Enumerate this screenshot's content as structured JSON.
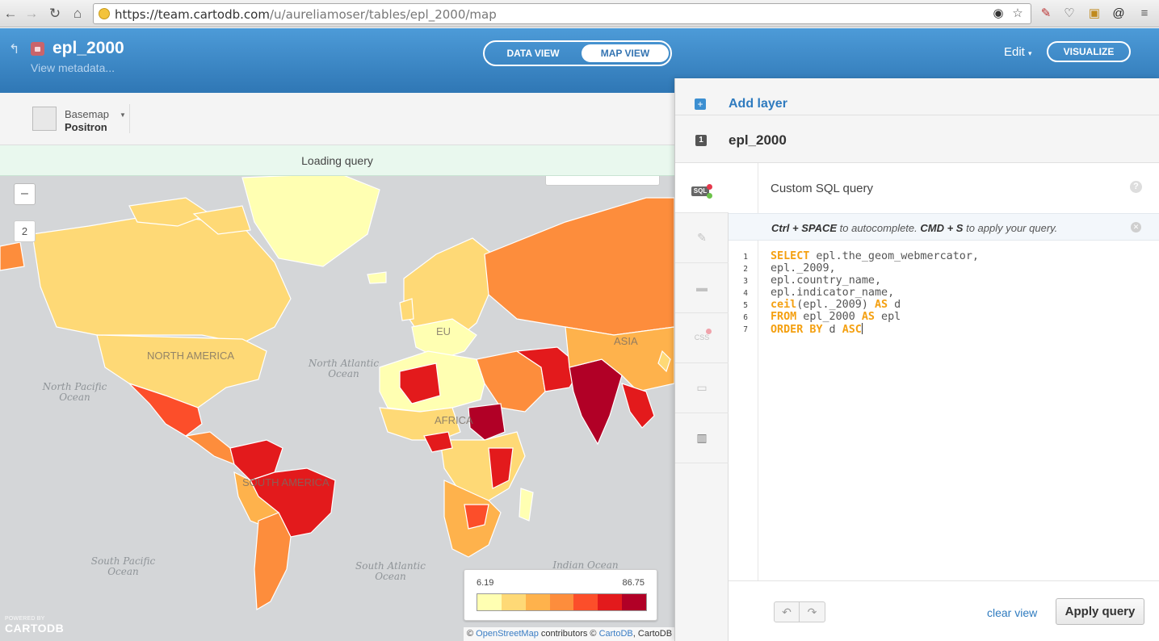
{
  "browser": {
    "url_host": "https://team.cartodb.com",
    "url_path": "/u/aureliamoser/tables/epl_2000/map"
  },
  "header": {
    "table_name": "epl_2000",
    "view_metadata": "View metadata...",
    "data_view": "DATA VIEW",
    "map_view": "MAP VIEW",
    "edit": "Edit",
    "visualize": "VISUALIZE"
  },
  "map": {
    "basemap_label": "Basemap",
    "basemap_value": "Positron",
    "loading": "Loading query",
    "zoom_out": "–",
    "zoom_level": "2",
    "ocean_labels": [
      "North Atlantic Ocean",
      "North Pacific Ocean",
      "South Pacific Ocean",
      "South Atlantic Ocean",
      "Indian Ocean"
    ],
    "continent_labels": [
      "NORTH AMERICA",
      "SOUTH AMERICA",
      "AFRICA",
      "EU",
      "ASIA"
    ],
    "legend": {
      "min": "6.19",
      "max": "86.75",
      "colors": [
        "#ffffb2",
        "#fed976",
        "#feb24c",
        "#fd8d3c",
        "#fc4e2a",
        "#e31a1c",
        "#b10026"
      ]
    },
    "attribution": {
      "prefix": "© ",
      "osm": "OpenStreetMap",
      "mid": " contributors © ",
      "cartodb": "CartoDB",
      "suffix": ", CartoDB"
    },
    "logo_powered": "POWERED BY",
    "logo_name": "CARTODB"
  },
  "panel": {
    "add_layer": "Add layer",
    "layer_number": "1",
    "layer_name": "epl_2000",
    "sql_title": "Custom SQL query",
    "help": "?",
    "hint_k1": "Ctrl + SPACE",
    "hint_t1": " to autocomplete. ",
    "hint_k2": "CMD + S",
    "hint_t2": " to apply your query.",
    "sql_badge": "SQL",
    "code_lines": [
      {
        "n": "1",
        "kw": "SELECT",
        "rest": " epl.the_geom_webmercator,"
      },
      {
        "n": "2",
        "kw": "",
        "rest": "epl._2009,"
      },
      {
        "n": "3",
        "kw": "",
        "rest": "epl.country_name,"
      },
      {
        "n": "4",
        "kw": "",
        "rest": "epl.indicator_name,"
      },
      {
        "n": "5",
        "kw": "ceil",
        "rest": "(epl._2009) "
      },
      {
        "n": "6",
        "kw": "FROM",
        "rest": " epl_2000 "
      },
      {
        "n": "7",
        "kw": "ORDER BY",
        "rest": " d "
      }
    ],
    "line5_as": "AS",
    "line5_tail": " d",
    "line6_as": "AS",
    "line6_tail": " epl",
    "line7_asc": "ASC",
    "undo": "↶",
    "redo": "↷",
    "clear_view": "clear view",
    "apply_query": "Apply query"
  }
}
